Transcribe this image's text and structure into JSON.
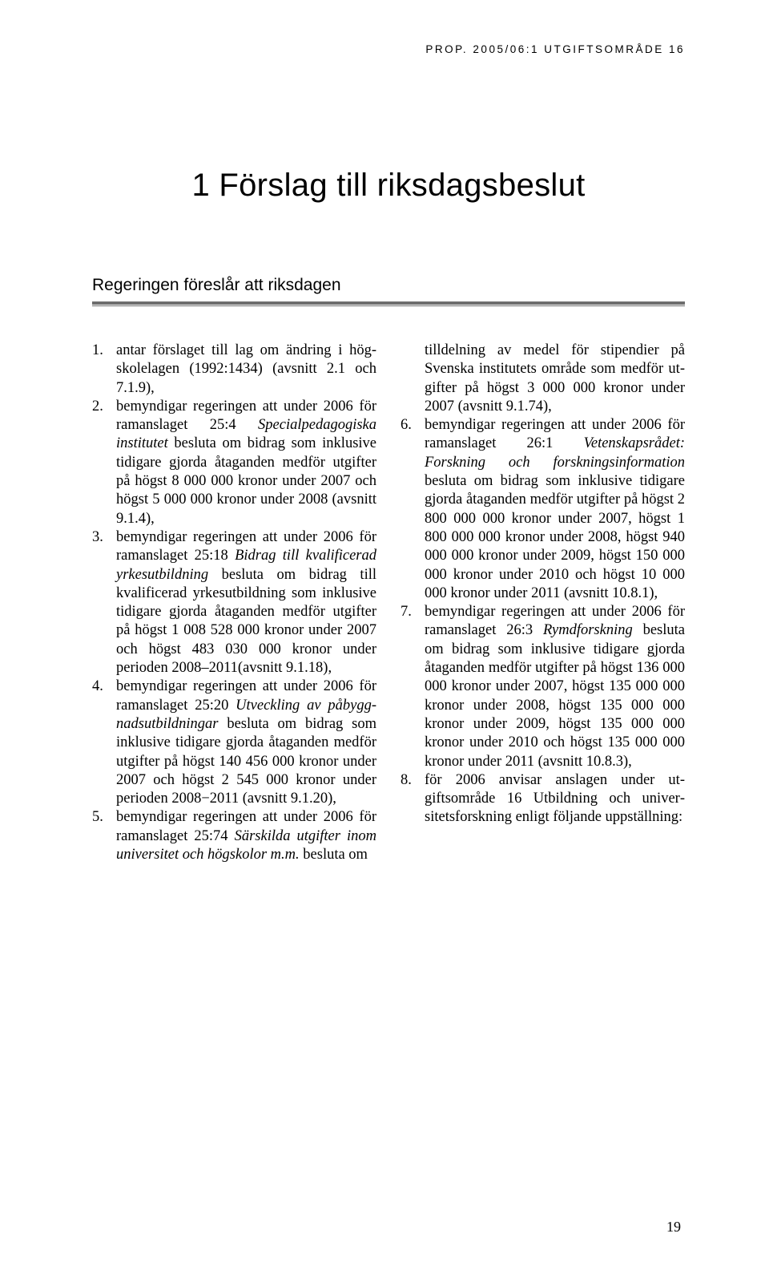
{
  "runningHead": "PROP. 2005/06:1 UTGIFTSOMRÅDE 16",
  "chapterTitle": "1 Förslag till riksdagsbeslut",
  "sectionTitle": "Regeringen föreslår att riksdagen",
  "pageNumber": "19",
  "leftItems": [
    {
      "n": "1.",
      "plain": "antar förslaget till lag om ändring i hög­skolelagen (1992:1434) (avsnitt 2.1 och 7.1.9),"
    },
    {
      "n": "2.",
      "pre": "bemyndigar regeringen att under 2006 för ramanslaget 25:4 ",
      "italic": "Specialpedagogiska institu­tet",
      "post": " besluta om bidrag som inklusive tidigare gjorda åtaganden medför utgifter på högst 8 000 000 kronor under 2007 och högst 5 000 000 kronor under 2008 (avsnitt 9.1.4),"
    },
    {
      "n": "3.",
      "pre": "bemyndigar regeringen att under 2006 för ramanslaget 25:18 ",
      "italic": "Bidrag till kvalificerad yrkesutbildning",
      "post": " besluta om bidrag till kvali­ficerad yrkesutbildning som inklusive tidigare gjorda åtaganden medför utgifter på högst 1 008 528 000 kronor under 2007 och högst 483 030 000 kronor under perioden 2008–2011(avsnitt 9.1.18),"
    },
    {
      "n": "4.",
      "pre": "bemyndigar regeringen att under 2006 för ramanslaget 25:20 ",
      "italic": "Utveckling av påbygg­nadsutbildningar",
      "post": " besluta om bidrag som in­klusive tidigare gjorda åtaganden medför utgifter på högst 140 456 000 kronor under 2007 och högst 2 545 000 kronor under perioden 2008−2011 (avsnitt 9.1.20),"
    },
    {
      "n": "5.",
      "pre": "bemyndigar regeringen att under 2006 för ramanslaget 25:74 ",
      "italic": "Särskilda utgifter inom universitet och högskolor m.m.",
      "post": " besluta om"
    }
  ],
  "rightContinuation": "tilldelning av medel för stipendier på Svenska institutets område som medför ut­gifter på högst 3 000 000 kronor under 2007 (avsnitt 9.1.74),",
  "rightItems": [
    {
      "n": "6.",
      "pre": "bemyndigar regeringen att under 2006 för ramanslaget 26:1 ",
      "italic": "Vetenskapsrådet: Forskning och forskningsinformation",
      "post": " besluta om bidrag som inklusive tidigare gjorda åtaganden medför utgifter på högst 2 800 000 000 kronor under 2007, högst 1 800 000 000 kronor under 2008, högst 940 000 000 kronor under 2009, högst 150 000 000 kronor under 2010 och högst 10 000 000 kronor under 2011 (avsnitt 10.8.1),"
    },
    {
      "n": "7.",
      "pre": "bemyndigar regeringen att under 2006 för ramanslaget 26:3 ",
      "italic": "Rymdforskning",
      "post": " besluta om bidrag som inklusive tidigare gjorda åtaganden medför utgifter på högst 136 000 000 kronor under 2007, högst 135 000 000 kronor under 2008, högst 135 000 000 kronor under 2009, högst 135 000 000 kronor under 2010 och högst 135 000 000 kronor under 2011 (avsnitt 10.8.3),"
    },
    {
      "n": "8.",
      "plain": "för 2006 anvisar anslagen under ut­giftsområde 16 Utbildning och univer­sitetsforskning enligt följande uppställning:"
    }
  ],
  "style": {
    "background": "#ffffff",
    "textColor": "#000000",
    "ruleColor": "#6d6d6d",
    "bodyFontSize": 18.5,
    "chapterFontSize": 40,
    "sectionFontSize": 21,
    "runningHeadFontSize": 13.5
  }
}
